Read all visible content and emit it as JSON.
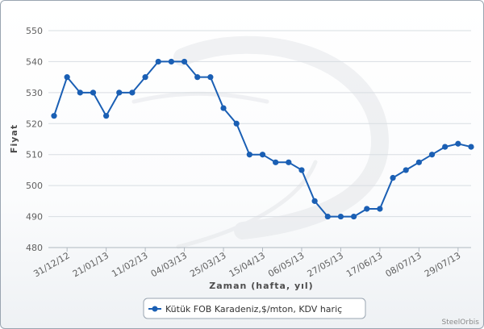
{
  "chart_data": {
    "type": "line",
    "title": "",
    "xlabel": "Zaman (hafta, yıl)",
    "ylabel": "Fiyat",
    "ylim": [
      480,
      550
    ],
    "yticks": [
      480,
      490,
      500,
      510,
      520,
      530,
      540,
      550
    ],
    "xtick_labels": [
      "31/12/12",
      "21/01/13",
      "11/02/13",
      "04/03/13",
      "25/03/13",
      "15/04/13",
      "06/05/13",
      "27/05/13",
      "17/06/13",
      "08/07/13",
      "29/07/13"
    ],
    "x": [
      "24/12/12",
      "31/12/12",
      "07/01/13",
      "14/01/13",
      "21/01/13",
      "28/01/13",
      "04/02/13",
      "11/02/13",
      "18/02/13",
      "25/02/13",
      "04/03/13",
      "11/03/13",
      "18/03/13",
      "25/03/13",
      "01/04/13",
      "08/04/13",
      "15/04/13",
      "22/04/13",
      "29/04/13",
      "06/05/13",
      "13/05/13",
      "20/05/13",
      "27/05/13",
      "03/06/13",
      "10/06/13",
      "17/06/13",
      "24/06/13",
      "01/07/13",
      "08/07/13",
      "15/07/13",
      "22/07/13",
      "29/07/13",
      "05/08/13"
    ],
    "series": [
      {
        "name": "Kütük FOB Karadeniz,$/mton, KDV hariç",
        "color": "#1a5fb4",
        "values": [
          522.5,
          535,
          530,
          530,
          522.5,
          530,
          530,
          535,
          540,
          540,
          540,
          535,
          535,
          525,
          520,
          510,
          510,
          507.5,
          507.5,
          505,
          495,
          490,
          490,
          490,
          492.5,
          492.5,
          502.5,
          505,
          507.5,
          510,
          512.5,
          513.5,
          512.5
        ]
      }
    ],
    "legend_position": "bottom-center",
    "grid": true,
    "watermark": "SteelOrbis"
  }
}
